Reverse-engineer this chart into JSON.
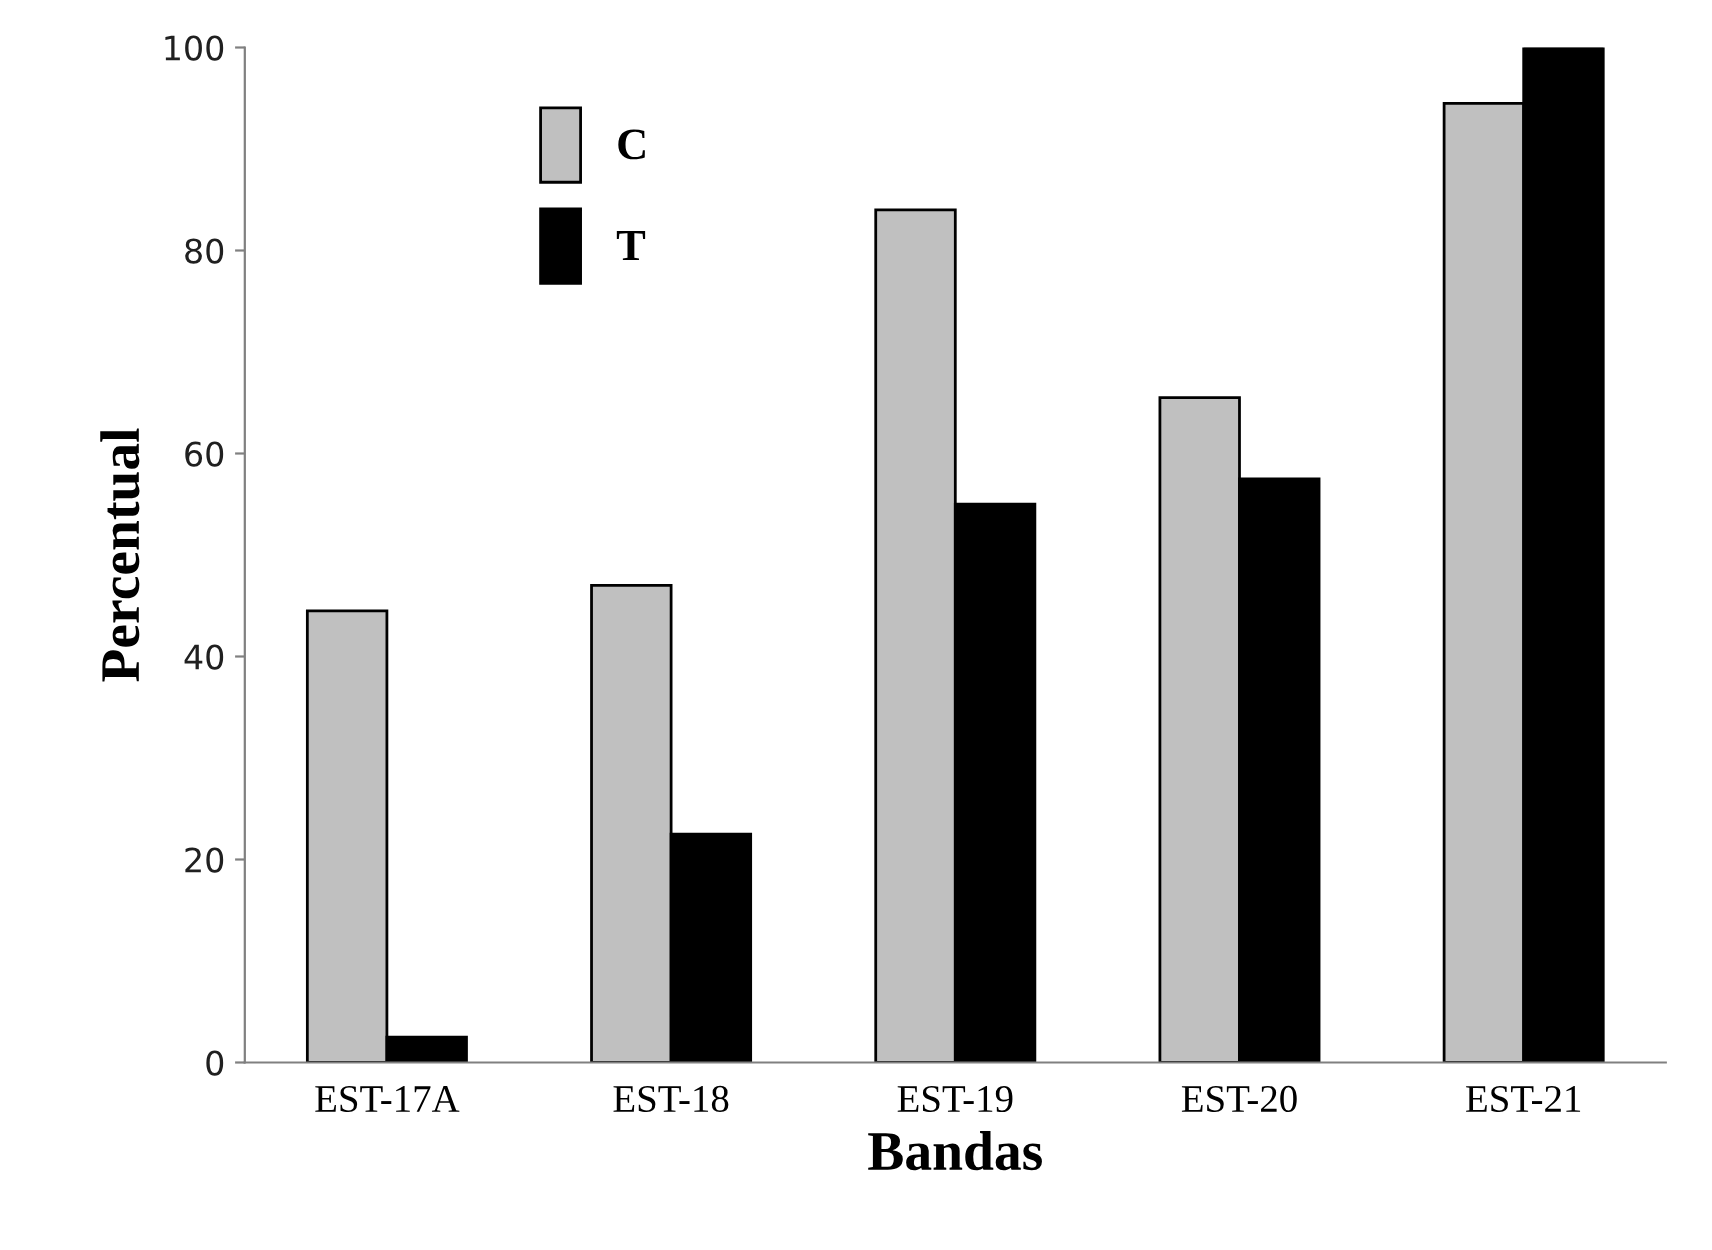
{
  "chart_data": {
    "type": "bar",
    "xlabel": "Bandas",
    "ylabel": "Percentual",
    "categories": [
      "EST-17A",
      "EST-18",
      "EST-19",
      "EST-20",
      "EST-21"
    ],
    "series": [
      {
        "name": "C",
        "color": "#c0c0c0",
        "values": [
          44.5,
          47,
          84,
          65.5,
          94.5
        ]
      },
      {
        "name": "T",
        "color": "#000000",
        "values": [
          2.5,
          22.5,
          55,
          57.5,
          100
        ]
      }
    ],
    "ylim": [
      0,
      100
    ],
    "yticks": [
      0,
      20,
      40,
      60,
      80,
      100
    ],
    "grid": false,
    "legend": "top left"
  }
}
